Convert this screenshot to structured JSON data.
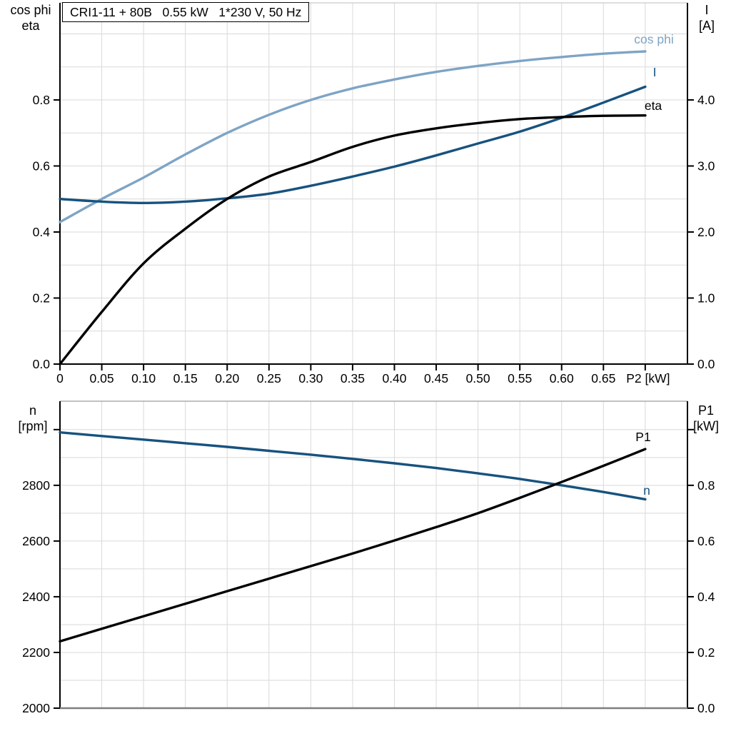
{
  "title": "CRI1-11 + 80B   0.55 kW   1*230 V, 50 Hz",
  "colors": {
    "dark_blue": "#17527E",
    "light_blue": "#7EA4C5",
    "black": "#000000",
    "grid": "#D9D9D9",
    "bottom_axis_gray": "#7F7F7F"
  },
  "chart_data": [
    {
      "type": "line",
      "panel": "upper",
      "x": [
        0,
        0.05,
        0.1,
        0.15,
        0.2,
        0.25,
        0.3,
        0.35,
        0.4,
        0.45,
        0.5,
        0.55,
        0.6,
        0.65,
        0.7
      ],
      "x_range": [
        0,
        0.7505
      ],
      "x_grid_values": [
        0.05,
        0.1,
        0.15,
        0.2,
        0.25,
        0.3,
        0.35,
        0.4,
        0.45,
        0.5,
        0.55,
        0.6,
        0.65,
        0.7
      ],
      "x_tick_values": [
        0,
        0.05,
        0.1,
        0.15,
        0.2,
        0.25,
        0.3,
        0.35,
        0.4,
        0.45,
        0.5,
        0.55,
        0.6,
        0.65,
        0.7
      ],
      "x_tick_labels": [
        "0",
        "0.05",
        "0.10",
        "0.15",
        "0.20",
        "0.25",
        "0.30",
        "0.35",
        "0.40",
        "0.45",
        "0.50",
        "0.55",
        "0.60",
        "0.65",
        "P2 [kW]"
      ],
      "left_axis": {
        "title": [
          "cos phi",
          "eta"
        ],
        "range": [
          0,
          1.094
        ],
        "tick_values": [
          0,
          0.2,
          0.4,
          0.6,
          0.8
        ],
        "tick_labels": [
          "0.0",
          "0.2",
          "0.4",
          "0.6",
          "0.8"
        ],
        "grid_values": [
          0.1,
          0.2,
          0.3,
          0.4,
          0.5,
          0.6,
          0.7,
          0.8,
          0.9,
          1.0
        ]
      },
      "right_axis": {
        "title": [
          "I",
          "[A]"
        ],
        "range": [
          0,
          5.47
        ],
        "tick_values": [
          0,
          1,
          2,
          3,
          4
        ],
        "tick_labels": [
          "0.0",
          "1.0",
          "2.0",
          "3.0",
          "4.0"
        ]
      },
      "series": [
        {
          "name": "cos phi",
          "axis": "left",
          "color": "#7EA4C5",
          "values": [
            0.43,
            0.5,
            0.565,
            0.635,
            0.7,
            0.755,
            0.8,
            0.835,
            0.862,
            0.885,
            0.903,
            0.918,
            0.93,
            0.94,
            0.947
          ]
        },
        {
          "name": "I",
          "axis": "right",
          "color": "#17527E",
          "values": [
            2.5,
            2.46,
            2.44,
            2.46,
            2.51,
            2.58,
            2.7,
            2.84,
            2.99,
            3.16,
            3.34,
            3.52,
            3.73,
            3.96,
            4.2
          ]
        },
        {
          "name": "eta",
          "axis": "left",
          "color": "#000000",
          "values": [
            0.0,
            0.158,
            0.305,
            0.41,
            0.5,
            0.568,
            0.612,
            0.658,
            0.692,
            0.714,
            0.73,
            0.742,
            0.748,
            0.752,
            0.753
          ]
        }
      ]
    },
    {
      "type": "line",
      "panel": "lower",
      "x": [
        0,
        0.05,
        0.1,
        0.15,
        0.2,
        0.25,
        0.3,
        0.35,
        0.4,
        0.45,
        0.5,
        0.55,
        0.6,
        0.65,
        0.7
      ],
      "x_range": [
        0,
        0.7505
      ],
      "x_grid_values": [
        0.05,
        0.1,
        0.15,
        0.2,
        0.25,
        0.3,
        0.35,
        0.4,
        0.45,
        0.5,
        0.55,
        0.6,
        0.65,
        0.7
      ],
      "left_axis": {
        "title": [
          "n",
          "[rpm]"
        ],
        "range": [
          2000,
          3102
        ],
        "tick_values": [
          2000,
          2200,
          2400,
          2600,
          2800
        ],
        "tick_labels": [
          "2000",
          "2200",
          "2400",
          "2600",
          "2800"
        ],
        "extra_ticks": [
          3000
        ],
        "grid_values": [
          2100,
          2200,
          2300,
          2400,
          2500,
          2600,
          2700,
          2800,
          2900,
          3000
        ]
      },
      "right_axis": {
        "title": [
          "P1",
          "[kW]"
        ],
        "range": [
          0,
          1.102
        ],
        "tick_values": [
          0,
          0.2,
          0.4,
          0.6,
          0.8
        ],
        "tick_labels": [
          "0.0",
          "0.2",
          "0.4",
          "0.6",
          "0.8"
        ],
        "extra_ticks": [
          1.0
        ]
      },
      "series": [
        {
          "name": "n",
          "axis": "left",
          "color": "#17527E",
          "values": [
            2990,
            2977,
            2964,
            2951,
            2938,
            2924,
            2910,
            2895,
            2879,
            2862,
            2843,
            2823,
            2800,
            2776,
            2750
          ]
        },
        {
          "name": "P1",
          "axis": "right",
          "color": "#000000",
          "values": [
            0.24,
            0.285,
            0.33,
            0.375,
            0.42,
            0.465,
            0.51,
            0.555,
            0.602,
            0.65,
            0.7,
            0.755,
            0.812,
            0.87,
            0.93
          ]
        }
      ]
    }
  ]
}
